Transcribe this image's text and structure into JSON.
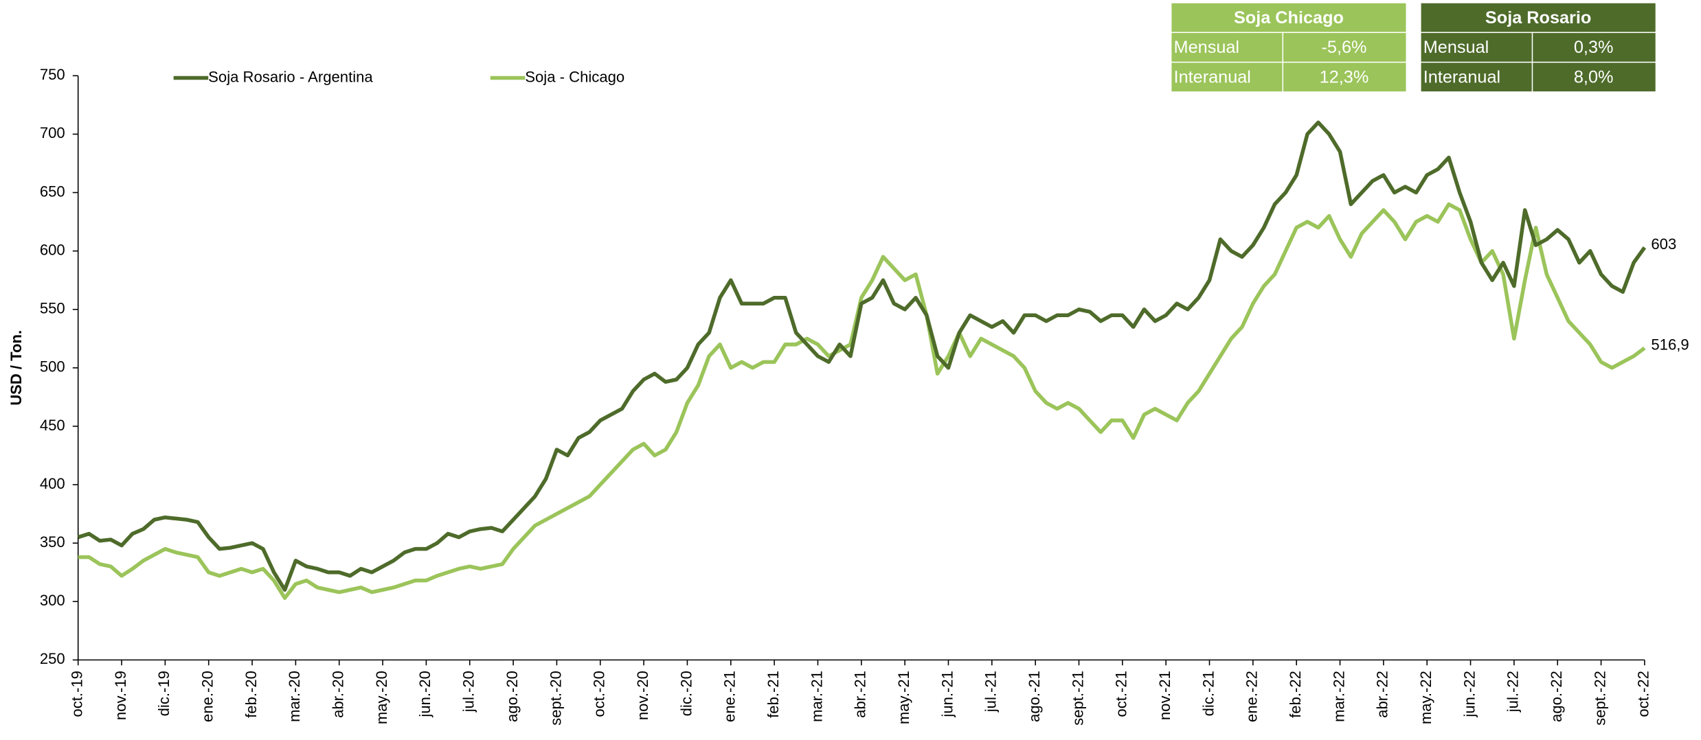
{
  "chart_data": {
    "type": "line",
    "y_label": "USD / Ton.",
    "categories": [
      "oct.-19",
      null,
      null,
      null,
      "nov.-19",
      null,
      null,
      null,
      "dic.-19",
      null,
      null,
      null,
      "ene.-20",
      null,
      null,
      null,
      "feb.-20",
      null,
      null,
      null,
      "mar.-20",
      null,
      null,
      null,
      "abr.-20",
      null,
      null,
      null,
      "may.-20",
      null,
      null,
      null,
      "jun.-20",
      null,
      null,
      null,
      "jul.-20",
      null,
      null,
      null,
      "ago.-20",
      null,
      null,
      null,
      "sept.-20",
      null,
      null,
      null,
      "oct.-20",
      null,
      null,
      null,
      "nov.-20",
      null,
      null,
      null,
      "dic.-20",
      null,
      null,
      null,
      "ene.-21",
      null,
      null,
      null,
      "feb.-21",
      null,
      null,
      null,
      "mar.-21",
      null,
      null,
      null,
      "abr.-21",
      null,
      null,
      null,
      "may.-21",
      null,
      null,
      null,
      "jun.-21",
      null,
      null,
      null,
      "jul.-21",
      null,
      null,
      null,
      "ago.-21",
      null,
      null,
      null,
      "sept.-21",
      null,
      null,
      null,
      "oct.-21",
      null,
      null,
      null,
      "nov.-21",
      null,
      null,
      null,
      "dic.-21",
      null,
      null,
      null,
      "ene.-22",
      null,
      null,
      null,
      "feb.-22",
      null,
      null,
      null,
      "mar.-22",
      null,
      null,
      null,
      "abr.-22",
      null,
      null,
      null,
      "may.-22",
      null,
      null,
      null,
      "jun.-22",
      null,
      null,
      null,
      "jul.-22",
      null,
      null,
      null,
      "ago.-22",
      null,
      null,
      null,
      "sept.-22",
      null,
      null,
      null,
      "oct.-22"
    ],
    "series": [
      {
        "name": "Soja Rosario - Argentina",
        "color": "#4e6b2a",
        "values": [
          355,
          358,
          352,
          353,
          348,
          358,
          362,
          370,
          372,
          371,
          370,
          368,
          355,
          345,
          346,
          348,
          350,
          345,
          325,
          310,
          335,
          330,
          328,
          325,
          325,
          322,
          328,
          325,
          330,
          335,
          342,
          345,
          345,
          350,
          358,
          355,
          360,
          362,
          363,
          360,
          370,
          380,
          390,
          405,
          430,
          425,
          440,
          445,
          455,
          460,
          465,
          480,
          490,
          495,
          488,
          490,
          500,
          520,
          530,
          560,
          575,
          555,
          555,
          555,
          560,
          560,
          530,
          520,
          510,
          505,
          520,
          510,
          555,
          560,
          575,
          555,
          550,
          560,
          545,
          510,
          500,
          530,
          545,
          540,
          535,
          540,
          530,
          545,
          545,
          540,
          545,
          545,
          550,
          548,
          540,
          545,
          545,
          535,
          550,
          540,
          545,
          555,
          550,
          560,
          575,
          610,
          600,
          595,
          605,
          620,
          640,
          650,
          665,
          700,
          710,
          700,
          685,
          640,
          650,
          660,
          665,
          650,
          655,
          650,
          665,
          670,
          680,
          650,
          625,
          590,
          575,
          590,
          570,
          635,
          605,
          610,
          618,
          610,
          590,
          600,
          580,
          570,
          565,
          590,
          603
        ],
        "value_labels": [
          null,
          null,
          null,
          null,
          null,
          null,
          null,
          null,
          null,
          null,
          null,
          null,
          null,
          null,
          null,
          null,
          null,
          null,
          null,
          null,
          null,
          null,
          null,
          null,
          null,
          null,
          null,
          null,
          null,
          null,
          null,
          null,
          null,
          null,
          null,
          null,
          null,
          null,
          null,
          null,
          null,
          null,
          null,
          null,
          null,
          null,
          null,
          null,
          null,
          null,
          null,
          null,
          null,
          null,
          null,
          null,
          null,
          null,
          null,
          null,
          null,
          null,
          null,
          null,
          null,
          null,
          null,
          null,
          null,
          null,
          null,
          null,
          null,
          null,
          null,
          null,
          null,
          null,
          null,
          null,
          null,
          null,
          null,
          null,
          null,
          null,
          null,
          null,
          null,
          null,
          null,
          null,
          null,
          null,
          null,
          null,
          null,
          null,
          null,
          null,
          null,
          null,
          null,
          null,
          null,
          null,
          null,
          null,
          null,
          null,
          null,
          null,
          null,
          null,
          null,
          null,
          null,
          null,
          null,
          null,
          null,
          null,
          null,
          null,
          null,
          null,
          null,
          null,
          null,
          null,
          null,
          null,
          null,
          null,
          null,
          null,
          null,
          null,
          null,
          null,
          null,
          null,
          null,
          null,
          "603"
        ]
      },
      {
        "name": "Soja - Chicago",
        "color": "#9bc45a",
        "values": [
          338,
          338,
          332,
          330,
          322,
          328,
          335,
          340,
          345,
          342,
          340,
          338,
          325,
          322,
          325,
          328,
          325,
          328,
          318,
          303,
          315,
          318,
          312,
          310,
          308,
          310,
          312,
          308,
          310,
          312,
          315,
          318,
          318,
          322,
          325,
          328,
          330,
          328,
          330,
          332,
          345,
          355,
          365,
          370,
          375,
          380,
          385,
          390,
          400,
          410,
          420,
          430,
          435,
          425,
          430,
          445,
          470,
          485,
          510,
          520,
          500,
          505,
          500,
          505,
          505,
          520,
          520,
          525,
          520,
          510,
          515,
          520,
          560,
          575,
          595,
          585,
          575,
          580,
          545,
          495,
          510,
          530,
          510,
          525,
          520,
          515,
          510,
          500,
          480,
          470,
          465,
          470,
          465,
          455,
          445,
          455,
          455,
          440,
          460,
          465,
          460,
          455,
          470,
          480,
          495,
          510,
          525,
          535,
          555,
          570,
          580,
          600,
          620,
          625,
          620,
          630,
          610,
          595,
          615,
          625,
          635,
          625,
          610,
          625,
          630,
          625,
          640,
          635,
          610,
          590,
          600,
          580,
          525,
          575,
          620,
          580,
          560,
          540,
          530,
          520,
          505,
          500,
          505,
          510,
          516.9
        ],
        "value_labels": [
          null,
          null,
          null,
          null,
          null,
          null,
          null,
          null,
          null,
          null,
          null,
          null,
          null,
          null,
          null,
          null,
          null,
          null,
          null,
          null,
          null,
          null,
          null,
          null,
          null,
          null,
          null,
          null,
          null,
          null,
          null,
          null,
          null,
          null,
          null,
          null,
          null,
          null,
          null,
          null,
          null,
          null,
          null,
          null,
          null,
          null,
          null,
          null,
          null,
          null,
          null,
          null,
          null,
          null,
          null,
          null,
          null,
          null,
          null,
          null,
          null,
          null,
          null,
          null,
          null,
          null,
          null,
          null,
          null,
          null,
          null,
          null,
          null,
          null,
          null,
          null,
          null,
          null,
          null,
          null,
          null,
          null,
          null,
          null,
          null,
          null,
          null,
          null,
          null,
          null,
          null,
          null,
          null,
          null,
          null,
          null,
          null,
          null,
          null,
          null,
          null,
          null,
          null,
          null,
          null,
          null,
          null,
          null,
          null,
          null,
          null,
          null,
          null,
          null,
          null,
          null,
          null,
          null,
          null,
          null,
          null,
          null,
          null,
          null,
          null,
          null,
          null,
          null,
          null,
          null,
          null,
          null,
          null,
          null,
          null,
          null,
          null,
          null,
          null,
          null,
          null,
          null,
          null,
          null,
          "516,9"
        ]
      }
    ],
    "ylim": [
      250,
      750
    ],
    "yticks": [
      250,
      300,
      350,
      400,
      450,
      500,
      550,
      600,
      650,
      700,
      750
    ],
    "tables": [
      {
        "title": "Soja Chicago",
        "color": "#9bc45a",
        "rows": [
          [
            "Mensual",
            "-5,6%"
          ],
          [
            "Interanual",
            "12,3%"
          ]
        ]
      },
      {
        "title": "Soja Rosario",
        "color": "#4e6b2a",
        "rows": [
          [
            "Mensual",
            "0,3%"
          ],
          [
            "Interanual",
            "8,0%"
          ]
        ]
      }
    ]
  }
}
